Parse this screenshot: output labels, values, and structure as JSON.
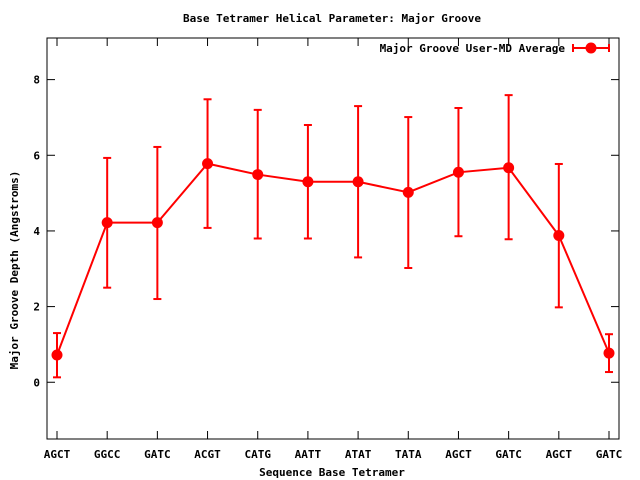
{
  "chart_data": {
    "type": "line",
    "title": "Base Tetramer Helical Parameter: Major Groove",
    "xlabel": "Sequence Base Tetramer",
    "ylabel": "Major Groove Depth (Angstroms)",
    "categories": [
      "AGCT",
      "GGCC",
      "GATC",
      "ACGT",
      "CATG",
      "AATT",
      "ATAT",
      "TATA",
      "AGCT",
      "GATC",
      "AGCT",
      "GATC"
    ],
    "yticks": [
      "0",
      "2",
      "4",
      "6",
      "8"
    ],
    "ylim": [
      -1.5,
      9.1
    ],
    "grid": false,
    "legend_position": "top-right",
    "color": "#ff0000",
    "series": [
      {
        "name": "Major Groove User-MD Average",
        "values": [
          0.72,
          4.22,
          4.22,
          5.78,
          5.49,
          5.3,
          5.3,
          5.02,
          5.55,
          5.67,
          3.88,
          0.77
        ],
        "error_low": [
          0.13,
          2.5,
          2.2,
          4.08,
          3.8,
          3.8,
          3.3,
          3.02,
          3.86,
          3.78,
          1.98,
          0.27
        ],
        "error_high": [
          1.3,
          5.93,
          6.22,
          7.48,
          7.2,
          6.8,
          7.3,
          7.01,
          7.25,
          7.59,
          5.77,
          1.27
        ]
      }
    ]
  }
}
